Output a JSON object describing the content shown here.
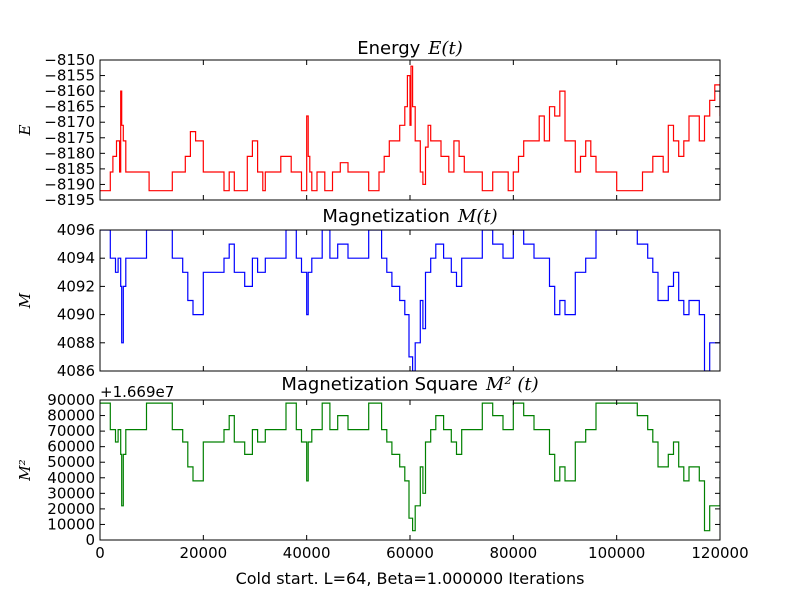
{
  "figure": {
    "xlabel": "Cold start. L=64, Beta=1.000000 Iterations",
    "x_ticks": [
      "0",
      "20000",
      "40000",
      "60000",
      "80000",
      "100000",
      "120000"
    ]
  },
  "chart_data": [
    {
      "type": "line",
      "title_text": "Energy",
      "title_math": "E(t)",
      "ylabel": "E",
      "color": "#ff0000",
      "xlim": [
        0,
        120000
      ],
      "ylim": [
        -8195,
        -8150
      ],
      "y_ticks": [
        "−8150",
        "−8155",
        "−8160",
        "−8165",
        "−8170",
        "−8175",
        "−8180",
        "−8185",
        "−8190",
        "−8195"
      ],
      "x": [
        0,
        2000,
        2500,
        3200,
        3800,
        4000,
        4200,
        4500,
        5000,
        9500,
        14000,
        16500,
        17500,
        18500,
        20000,
        24000,
        25000,
        26000,
        28500,
        29500,
        30500,
        31500,
        32000,
        35000,
        37000,
        39000,
        40000,
        40300,
        40600,
        41000,
        42000,
        43500,
        45000,
        46500,
        48000,
        52000,
        54000,
        55000,
        56000,
        57000,
        58000,
        59000,
        59500,
        60000,
        60200,
        60500,
        61000,
        62000,
        62500,
        63000,
        63500,
        64000,
        66000,
        67500,
        68500,
        69500,
        70500,
        74000,
        76000,
        79000,
        80000,
        81000,
        82000,
        84000,
        85000,
        86000,
        87000,
        88000,
        89000,
        90000,
        92000,
        93000,
        94000,
        95000,
        96000,
        100000,
        105000,
        107000,
        109000,
        110000,
        111000,
        112000,
        113000,
        114000,
        116000,
        117000,
        118000,
        119000,
        120000
      ],
      "values": [
        -8192,
        -8186,
        -8181,
        -8176,
        -8186,
        -8160,
        -8171,
        -8176,
        -8186,
        -8192,
        -8186,
        -8181,
        -8173,
        -8176,
        -8186,
        -8192,
        -8186,
        -8192,
        -8181,
        -8176,
        -8186,
        -8192,
        -8186,
        -8181,
        -8186,
        -8192,
        -8168,
        -8181,
        -8186,
        -8192,
        -8186,
        -8192,
        -8186,
        -8183,
        -8186,
        -8192,
        -8186,
        -8181,
        -8176,
        -8176,
        -8171,
        -8165,
        -8155,
        -8171,
        -8152,
        -8165,
        -8176,
        -8186,
        -8190,
        -8178,
        -8171,
        -8176,
        -8181,
        -8186,
        -8176,
        -8181,
        -8186,
        -8192,
        -8186,
        -8192,
        -8186,
        -8181,
        -8176,
        -8176,
        -8168,
        -8176,
        -8165,
        -8168,
        -8160,
        -8176,
        -8186,
        -8181,
        -8176,
        -8181,
        -8186,
        -8192,
        -8186,
        -8181,
        -8186,
        -8171,
        -8176,
        -8181,
        -8176,
        -8168,
        -8176,
        -8168,
        -8163,
        -8158,
        -8168
      ]
    },
    {
      "type": "line",
      "title_text": "Magnetization",
      "title_math": "M(t)",
      "ylabel": "M",
      "color": "#0000ff",
      "xlim": [
        0,
        120000
      ],
      "ylim": [
        4086,
        4096
      ],
      "y_ticks": [
        "4096",
        "4094",
        "4092",
        "4090",
        "4088",
        "4086"
      ],
      "x": [
        0,
        2000,
        3000,
        3500,
        4000,
        4200,
        4500,
        5000,
        9000,
        14000,
        16000,
        17000,
        18000,
        20000,
        24000,
        25000,
        26000,
        28000,
        29500,
        30500,
        32000,
        36000,
        38000,
        39000,
        40000,
        40300,
        41000,
        43000,
        44500,
        46000,
        48000,
        52000,
        54500,
        55500,
        56500,
        58000,
        59000,
        59800,
        60500,
        61000,
        62000,
        62500,
        63000,
        64000,
        65000,
        66500,
        68000,
        69000,
        70000,
        74000,
        76000,
        78000,
        80000,
        82000,
        84000,
        86000,
        87000,
        88000,
        89000,
        90000,
        92000,
        94000,
        96000,
        100000,
        104000,
        106000,
        107000,
        108000,
        110000,
        111000,
        112000,
        113000,
        114000,
        116000,
        117000,
        118000,
        119000,
        120000
      ],
      "values": [
        4096,
        4094,
        4093,
        4094,
        4092,
        4088,
        4092,
        4094,
        4096,
        4094,
        4093,
        4091,
        4090,
        4093,
        4094,
        4095,
        4093,
        4092,
        4094,
        4093,
        4094,
        4096,
        4094,
        4093,
        4090,
        4093,
        4094,
        4096,
        4094,
        4095,
        4094,
        4096,
        4094,
        4093,
        4092,
        4091,
        4090,
        4087,
        4086,
        4088,
        4091,
        4089,
        4093,
        4094,
        4095,
        4094,
        4093,
        4092,
        4094,
        4096,
        4095,
        4094,
        4096,
        4095,
        4094,
        4094,
        4092,
        4090,
        4091,
        4090,
        4093,
        4094,
        4096,
        4096,
        4095,
        4094,
        4093,
        4091,
        4092,
        4093,
        4091,
        4090,
        4091,
        4090,
        4086,
        4088,
        4088,
        4090
      ]
    },
    {
      "type": "line",
      "title_text": "Magnetization Square",
      "title_math": "M² (t)",
      "ylabel": "M²",
      "offset_text": "+1.669e7",
      "color": "#008000",
      "xlim": [
        0,
        120000
      ],
      "ylim": [
        0,
        90000
      ],
      "y_ticks": [
        "90000",
        "80000",
        "70000",
        "60000",
        "50000",
        "40000",
        "30000",
        "20000",
        "10000",
        "0"
      ],
      "x": [
        0,
        2000,
        3000,
        3500,
        4000,
        4200,
        4500,
        5000,
        9000,
        14000,
        16000,
        17000,
        18000,
        20000,
        24000,
        25000,
        26000,
        28000,
        29500,
        30500,
        32000,
        36000,
        38000,
        39000,
        40000,
        40300,
        41000,
        43000,
        44500,
        46000,
        48000,
        52000,
        54500,
        55500,
        56500,
        58000,
        59000,
        59800,
        60500,
        61000,
        62000,
        62500,
        63000,
        64000,
        65000,
        66500,
        68000,
        69000,
        70000,
        74000,
        76000,
        78000,
        80000,
        82000,
        84000,
        86000,
        87000,
        88000,
        89000,
        90000,
        92000,
        94000,
        96000,
        100000,
        104000,
        106000,
        107000,
        108000,
        110000,
        111000,
        112000,
        113000,
        114000,
        116000,
        117000,
        118000,
        119000,
        120000
      ],
      "values": [
        88000,
        71000,
        63000,
        71000,
        55000,
        22000,
        55000,
        71000,
        88000,
        71000,
        63000,
        47000,
        38000,
        63000,
        71000,
        80000,
        63000,
        55000,
        71000,
        63000,
        71000,
        88000,
        71000,
        63000,
        38000,
        63000,
        71000,
        88000,
        71000,
        80000,
        71000,
        88000,
        71000,
        63000,
        55000,
        47000,
        38000,
        14000,
        6000,
        22000,
        47000,
        30000,
        63000,
        71000,
        80000,
        71000,
        63000,
        55000,
        71000,
        88000,
        80000,
        71000,
        88000,
        80000,
        71000,
        71000,
        55000,
        38000,
        47000,
        38000,
        63000,
        71000,
        88000,
        88000,
        80000,
        71000,
        63000,
        47000,
        55000,
        63000,
        47000,
        38000,
        47000,
        38000,
        6000,
        22000,
        22000,
        38000
      ]
    }
  ]
}
